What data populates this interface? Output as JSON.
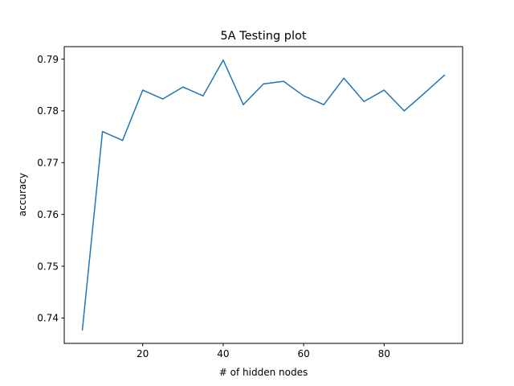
{
  "chart_data": {
    "type": "line",
    "title": "5A Testing plot",
    "xlabel": "# of hidden nodes",
    "ylabel": "accuracy",
    "x": [
      5,
      10,
      15,
      20,
      25,
      30,
      35,
      40,
      45,
      50,
      55,
      60,
      65,
      70,
      75,
      80,
      85,
      90,
      95
    ],
    "series": [
      {
        "values": [
          0.7377,
          0.776,
          0.7743,
          0.784,
          0.7823,
          0.7846,
          0.7829,
          0.7898,
          0.7812,
          0.7852,
          0.7857,
          0.7829,
          0.7812,
          0.7863,
          0.7818,
          0.784,
          0.78,
          0.7834,
          0.7869
        ],
        "color": "#1f77b4"
      }
    ],
    "xlim": [
      0.5,
      99.5
    ],
    "ylim": [
      0.7351,
      0.7924
    ],
    "xticks": [
      20,
      40,
      60,
      80
    ],
    "xtick_labels": [
      "20",
      "40",
      "60",
      "80"
    ],
    "yticks": [
      0.74,
      0.75,
      0.76,
      0.77,
      0.78,
      0.79
    ],
    "ytick_labels": [
      "0.74",
      "0.75",
      "0.76",
      "0.77",
      "0.78",
      "0.79"
    ],
    "grid": false,
    "legend": null
  }
}
